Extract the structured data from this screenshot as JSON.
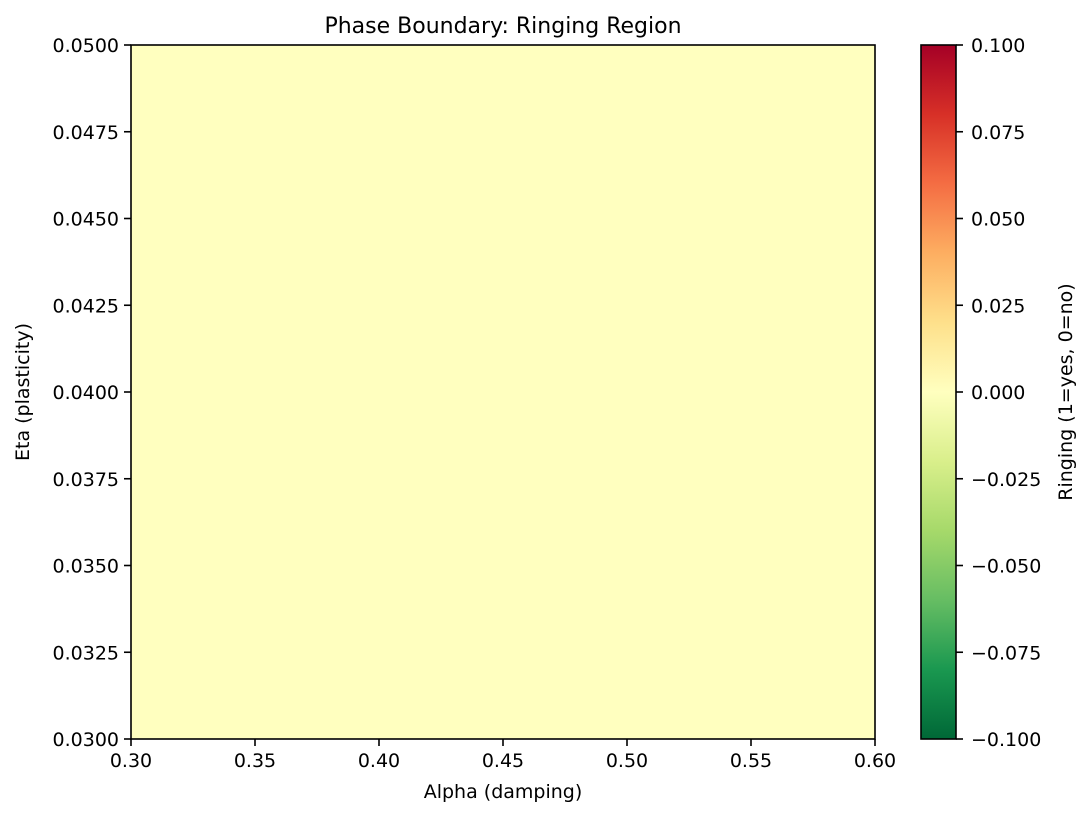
{
  "chart_data": {
    "type": "heatmap",
    "title": "Phase Boundary: Ringing Region",
    "xlabel": "Alpha (damping)",
    "ylabel": "Eta (plasticity)",
    "xlim": [
      0.3,
      0.6
    ],
    "ylim": [
      0.03,
      0.05
    ],
    "x_ticks": [
      "0.30",
      "0.35",
      "0.40",
      "0.45",
      "0.50",
      "0.55",
      "0.60"
    ],
    "y_ticks": [
      "0.0300",
      "0.0325",
      "0.0350",
      "0.0375",
      "0.0400",
      "0.0425",
      "0.0450",
      "0.0475",
      "0.0500"
    ],
    "z_value_everywhere": 0,
    "colorbar": {
      "label": "Ringing (1=yes, 0=no)",
      "range": [
        -0.1,
        0.1
      ],
      "ticks": [
        "−0.100",
        "−0.075",
        "−0.050",
        "−0.025",
        "0.000",
        "0.025",
        "0.050",
        "0.075",
        "0.100"
      ],
      "colormap": "RdYlGn_r",
      "colors_low_to_high": [
        "#006837",
        "#1a9850",
        "#66bd63",
        "#a6d96a",
        "#d9ef8b",
        "#ffffbf",
        "#fee08b",
        "#fdae61",
        "#f46d43",
        "#d73027",
        "#a50026"
      ]
    },
    "grid": false,
    "fill_color": "#ffffbf"
  }
}
